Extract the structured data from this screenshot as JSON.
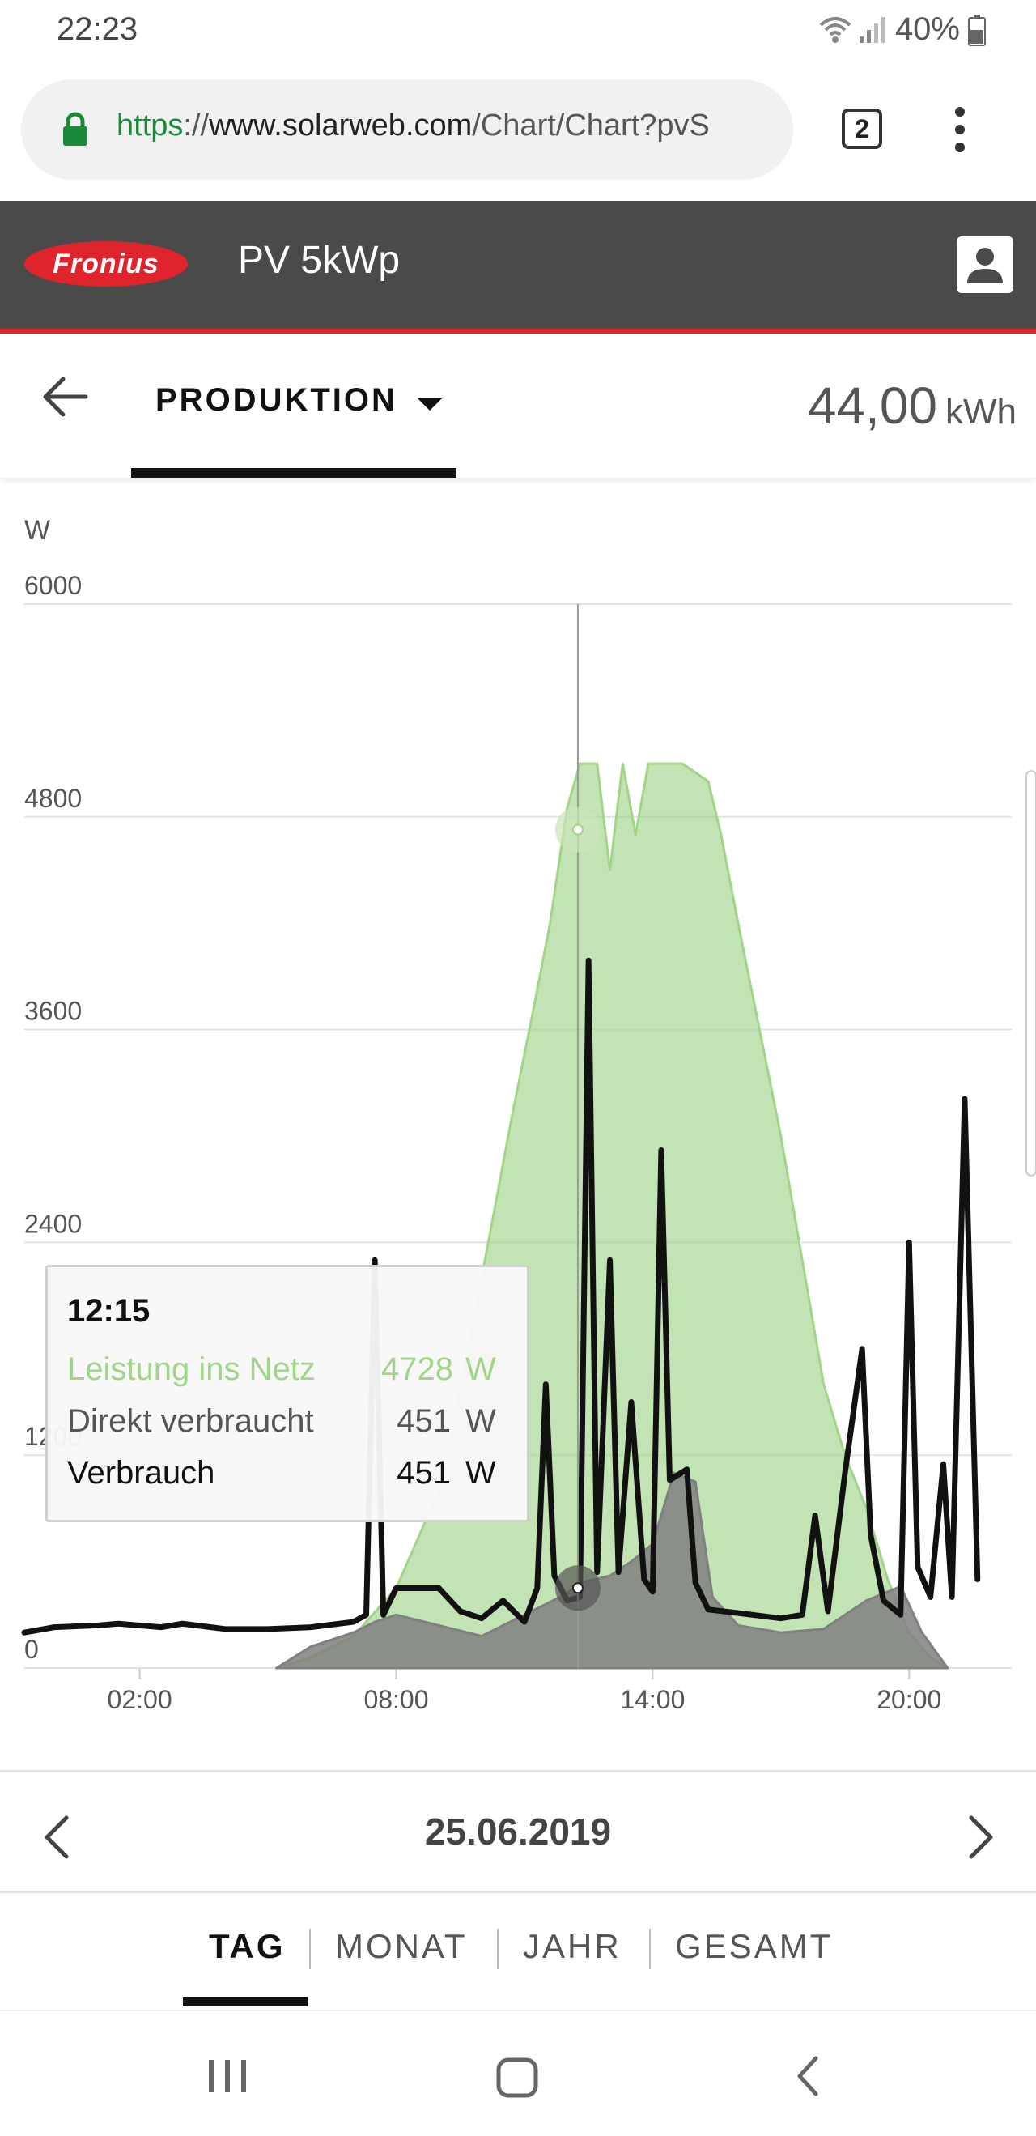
{
  "status_bar": {
    "time": "22:23",
    "battery": "40%"
  },
  "browser": {
    "url_proto": "https",
    "url_sep": "://",
    "url_host": "www.solarweb.com",
    "url_path": "/Chart/Chart?pvS",
    "tab_count": "2"
  },
  "app_header": {
    "brand": "Fronius",
    "title": "PV 5kWp"
  },
  "subbar": {
    "tab_label": "PRODUKTION",
    "total_value": "44,00",
    "total_unit": "kWh"
  },
  "chart_data": {
    "type": "area",
    "ylabel": "W",
    "yticks": [
      "0",
      "1200",
      "2400",
      "3600",
      "4800",
      "6000"
    ],
    "ylim": [
      0,
      6000
    ],
    "xticks": [
      "02:00",
      "08:00",
      "14:00",
      "20:00"
    ],
    "xlim": [
      -0.7,
      22.4
    ],
    "grid": true,
    "series": [
      {
        "name": "Leistung ins Netz",
        "color": "#a2d48a",
        "type": "area",
        "points": [
          [
            5.2,
            0
          ],
          [
            6,
            60
          ],
          [
            7,
            180
          ],
          [
            8,
            450
          ],
          [
            9,
            1000
          ],
          [
            10,
            2200
          ],
          [
            10.7,
            3100
          ],
          [
            11.2,
            3700
          ],
          [
            11.6,
            4200
          ],
          [
            12,
            4850
          ],
          [
            12.3,
            5100
          ],
          [
            12.7,
            5100
          ],
          [
            13,
            4500
          ],
          [
            13.3,
            5100
          ],
          [
            13.6,
            4700
          ],
          [
            13.9,
            5100
          ],
          [
            14.3,
            5100
          ],
          [
            14.7,
            5100
          ],
          [
            15.3,
            5000
          ],
          [
            15.6,
            4700
          ],
          [
            16,
            4200
          ],
          [
            16.5,
            3600
          ],
          [
            17,
            3000
          ],
          [
            17.5,
            2300
          ],
          [
            18,
            1600
          ],
          [
            18.5,
            1200
          ],
          [
            19,
            900
          ],
          [
            19.5,
            500
          ],
          [
            20,
            200
          ],
          [
            20.5,
            60
          ],
          [
            20.9,
            0
          ]
        ]
      },
      {
        "name": "Direkt verbraucht",
        "color": "#808080",
        "type": "area",
        "points": [
          [
            5.2,
            0
          ],
          [
            6,
            120
          ],
          [
            7,
            200
          ],
          [
            7.5,
            260
          ],
          [
            8,
            300
          ],
          [
            9,
            240
          ],
          [
            10,
            180
          ],
          [
            11,
            300
          ],
          [
            12,
            420
          ],
          [
            12.3,
            480
          ],
          [
            13,
            520
          ],
          [
            13.5,
            600
          ],
          [
            14,
            700
          ],
          [
            14.5,
            1100
          ],
          [
            15,
            1050
          ],
          [
            15.4,
            400
          ],
          [
            16,
            240
          ],
          [
            17,
            200
          ],
          [
            18,
            220
          ],
          [
            19,
            380
          ],
          [
            19.8,
            460
          ],
          [
            20.3,
            200
          ],
          [
            20.9,
            0
          ]
        ]
      },
      {
        "name": "Verbrauch",
        "color": "#111111",
        "type": "line",
        "points": [
          [
            -0.7,
            200
          ],
          [
            0,
            230
          ],
          [
            1,
            240
          ],
          [
            1.5,
            250
          ],
          [
            2,
            240
          ],
          [
            2.5,
            230
          ],
          [
            3,
            250
          ],
          [
            4,
            220
          ],
          [
            5,
            220
          ],
          [
            6,
            230
          ],
          [
            7,
            260
          ],
          [
            7.3,
            300
          ],
          [
            7.5,
            2300
          ],
          [
            7.7,
            300
          ],
          [
            8,
            450
          ],
          [
            9,
            450
          ],
          [
            9.5,
            320
          ],
          [
            10,
            280
          ],
          [
            10.5,
            380
          ],
          [
            11,
            260
          ],
          [
            11.3,
            450
          ],
          [
            11.5,
            1600
          ],
          [
            11.7,
            520
          ],
          [
            12,
            380
          ],
          [
            12.3,
            400
          ],
          [
            12.5,
            3990
          ],
          [
            12.7,
            540
          ],
          [
            13,
            2300
          ],
          [
            13.2,
            540
          ],
          [
            13.5,
            1500
          ],
          [
            13.8,
            500
          ],
          [
            14,
            430
          ],
          [
            14.2,
            2920
          ],
          [
            14.4,
            1060
          ],
          [
            14.8,
            1120
          ],
          [
            15,
            480
          ],
          [
            15.3,
            330
          ],
          [
            16,
            310
          ],
          [
            17,
            280
          ],
          [
            17.5,
            300
          ],
          [
            17.8,
            860
          ],
          [
            18.1,
            320
          ],
          [
            18.5,
            1100
          ],
          [
            18.9,
            1800
          ],
          [
            19.1,
            750
          ],
          [
            19.4,
            380
          ],
          [
            19.8,
            300
          ],
          [
            20,
            2400
          ],
          [
            20.2,
            570
          ],
          [
            20.5,
            400
          ],
          [
            20.8,
            1150
          ],
          [
            21,
            400
          ],
          [
            21.3,
            3210
          ],
          [
            21.6,
            500
          ]
        ]
      }
    ],
    "crosshair_x": 12.25
  },
  "tooltip": {
    "time": "12:15",
    "rows": [
      {
        "label": "Leistung ins Netz",
        "value": "4728",
        "unit": "W"
      },
      {
        "label": "Direkt verbraucht",
        "value": "451",
        "unit": "W"
      },
      {
        "label": "Verbrauch",
        "value": "451",
        "unit": "W"
      }
    ]
  },
  "date_nav": {
    "date": "25.06.2019"
  },
  "period_tabs": [
    "TAG",
    "MONAT",
    "JAHR",
    "GESAMT"
  ]
}
